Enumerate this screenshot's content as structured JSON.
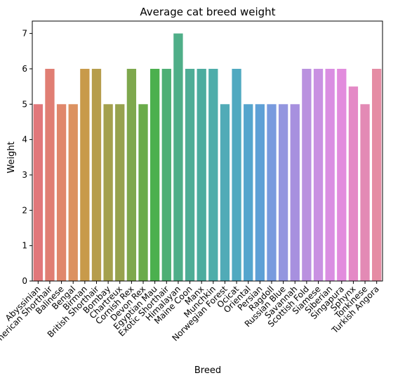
{
  "chart_data": {
    "type": "bar",
    "title": "Average cat breed weight",
    "xlabel": "Breed",
    "ylabel": "Weight",
    "ylim": [
      0,
      7.35
    ],
    "yticks": [
      0,
      1,
      2,
      3,
      4,
      5,
      6,
      7
    ],
    "grid": false,
    "legend": "none",
    "categories": [
      "Abyssinian",
      "American Shorthair",
      "Balinese",
      "Bengal",
      "Birman",
      "British Shorthair",
      "Bombay",
      "Chartreux",
      "Cornish Rex",
      "Devon Rex",
      "Egyptian Mau",
      "Exotic Shorthair",
      "Himalayan",
      "Maine Coon",
      "Manx",
      "Munchkin",
      "Norwegian Forest",
      "Ocicat",
      "Oriental",
      "Persian",
      "Ragdoll",
      "Russian Blue",
      "Savannah",
      "Scottish Fold",
      "Siamese",
      "Siberian",
      "Singapura",
      "Sphynx",
      "Tonkinese",
      "Turkish Angora"
    ],
    "values": [
      5,
      6,
      5,
      5,
      6,
      6,
      5,
      5,
      6,
      5,
      6,
      6,
      7,
      6,
      6,
      6,
      5,
      6,
      5,
      5,
      5,
      5,
      5,
      6,
      6,
      6,
      6,
      5.5,
      5,
      6
    ],
    "colors": [
      "#e1777a",
      "#e07e73",
      "#e0876b",
      "#dc9261",
      "#c89a4a",
      "#b69d4c",
      "#a4a04d",
      "#97a24e",
      "#7ea84d",
      "#6aab4a",
      "#4bb04e",
      "#4eaf75",
      "#4fae88",
      "#4ead96",
      "#4cac9f",
      "#4eadaa",
      "#51abb7",
      "#50a9c0",
      "#55a5cd",
      "#5ea0d6",
      "#789ade",
      "#9396df",
      "#a790df",
      "#ba91df",
      "#c991e2",
      "#da8ee2",
      "#e28cdd",
      "#e489c6",
      "#e38ab5",
      "#e58ca4"
    ]
  }
}
